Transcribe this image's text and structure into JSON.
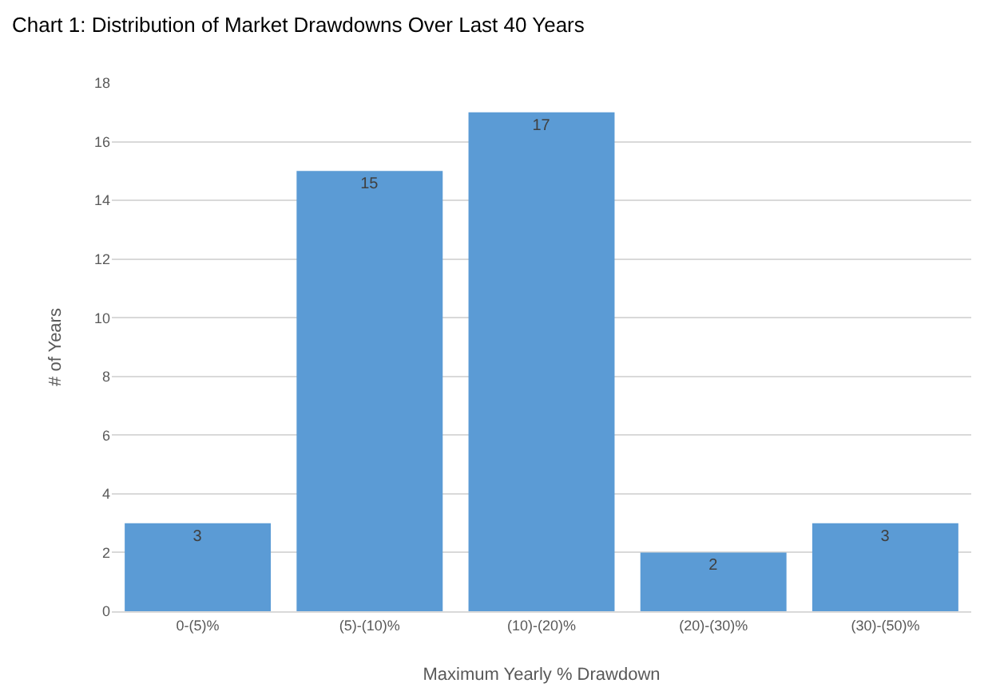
{
  "chart_data": {
    "type": "bar",
    "title": "Chart 1: Distribution of Market Drawdowns Over Last 40 Years",
    "xlabel": "Maximum Yearly % Drawdown",
    "ylabel": "# of Years",
    "categories": [
      "0-(5)%",
      "(5)-(10)%",
      "(10)-(20)%",
      "(20)-(30)%",
      "(30)-(50)%"
    ],
    "values": [
      3,
      15,
      17,
      2,
      3
    ],
    "color": "#5b9bd5",
    "ylim": [
      0,
      18
    ],
    "yticks": [
      0,
      2,
      4,
      6,
      8,
      10,
      12,
      14,
      16,
      18
    ],
    "grid": "y",
    "data_labels": true,
    "legend": false
  }
}
